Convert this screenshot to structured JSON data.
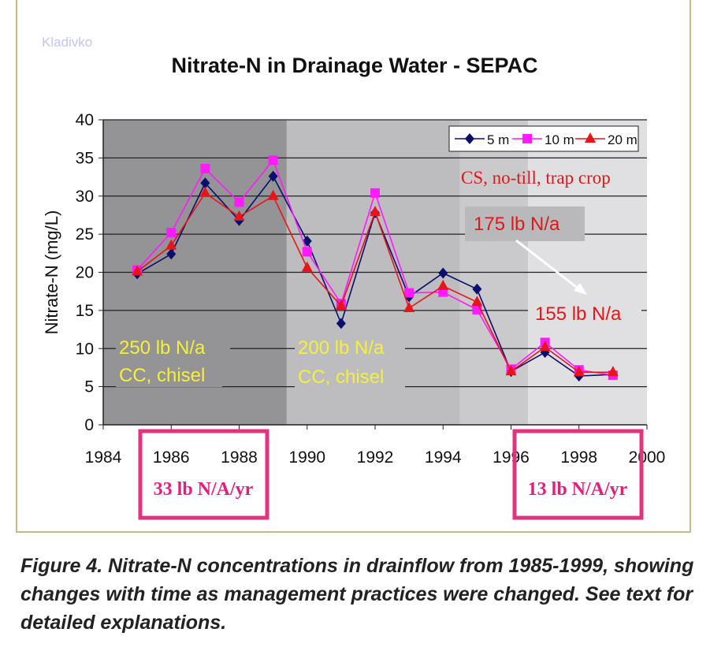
{
  "watermark": "Kladivko",
  "chart_data": {
    "type": "line",
    "title": "Nitrate-N in Drainage Water - SEPAC",
    "xlabel": "",
    "ylabel": "Nitrate-N (mg/L)",
    "xlim": [
      1984,
      2000
    ],
    "ylim": [
      0,
      40
    ],
    "xticks": [
      1984,
      1986,
      1988,
      1990,
      1992,
      1994,
      1996,
      1998,
      2000
    ],
    "yticks": [
      0,
      5,
      10,
      15,
      20,
      25,
      30,
      35,
      40
    ],
    "grid": true,
    "legend": "top-right",
    "x": [
      1985,
      1986,
      1987,
      1988,
      1989,
      1990,
      1991,
      1992,
      1993,
      1994,
      1995,
      1996,
      1997,
      1998,
      1999
    ],
    "series": [
      {
        "name": "5 m",
        "color": "#0a0f6e",
        "marker": "diamond",
        "values": [
          19.8,
          22.4,
          31.7,
          26.8,
          32.6,
          24.1,
          13.3,
          27.8,
          16.8,
          19.9,
          17.8,
          7.0,
          9.5,
          6.4,
          6.6
        ]
      },
      {
        "name": "10 m",
        "color": "#ff1aff",
        "marker": "square",
        "values": [
          20.3,
          25.2,
          33.6,
          29.2,
          34.7,
          22.7,
          15.9,
          30.4,
          17.3,
          17.4,
          15.1,
          7.3,
          10.8,
          7.2,
          6.5
        ]
      },
      {
        "name": "20 m",
        "color": "#e8141a",
        "marker": "triangle",
        "values": [
          20.1,
          23.5,
          30.4,
          27.3,
          30.0,
          20.6,
          15.6,
          27.9,
          15.3,
          18.2,
          16.1,
          7.0,
          10.2,
          6.9,
          6.9
        ]
      }
    ],
    "background_periods": [
      {
        "from": 1984,
        "to": 1989.4,
        "color": "#949496"
      },
      {
        "from": 1989.4,
        "to": 1994.5,
        "color": "#bdbdbf"
      },
      {
        "from": 1994.5,
        "to": 1996.5,
        "color": "#cacacc"
      },
      {
        "from": 1996.5,
        "to": 2000,
        "color": "#e0e0e2"
      }
    ],
    "annotations": {
      "period1_rate": "250 lb N/a",
      "period1_practice": "CC, chisel",
      "period2_rate": "200 lb N/a",
      "period2_practice": "CC, chisel",
      "period3_practice": "CS, no-till, trap crop",
      "period3_rate_from": "175 lb N/a",
      "period3_rate_to": "155 lb N/a",
      "box_left": "33 lb N/A/yr",
      "box_right": "13 lb N/A/yr"
    }
  },
  "caption": "Figure 4.  Nitrate-N concentrations in drainflow from 1985-1999, showing changes with time as management practices were changed.  See text for detailed explanations."
}
